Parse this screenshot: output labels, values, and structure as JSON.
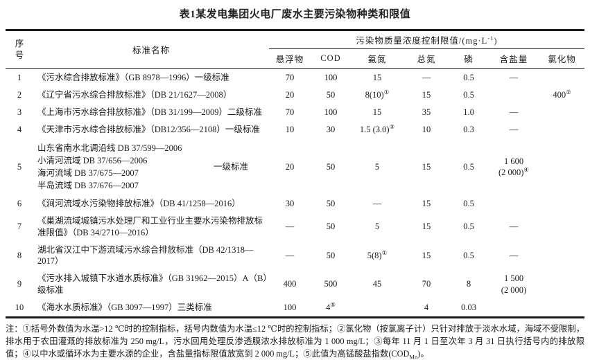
{
  "title": "表1某发电集团火电厂废水主要污染物种类和限值",
  "table": {
    "header": {
      "col_seq": "序号",
      "col_name": "标准名称",
      "span_pre": "污染物质量浓度控制限值/(mg·L",
      "span_sup": "-1",
      "span_post": ")",
      "sub_columns": [
        "悬浮物",
        "COD",
        "氨氮",
        "总氮",
        "磷",
        "含盐量",
        "氯化物"
      ]
    },
    "rows": [
      {
        "seq": "1",
        "name": "《污水综合排放标准》（GB 8978—1996）一级标准",
        "values": [
          "70",
          "100",
          "15",
          "—",
          "0.5",
          "—",
          ""
        ]
      },
      {
        "seq": "2",
        "name": "《辽宁省污水综合排放标准》（DB 21/1627—2008）",
        "values": [
          "20",
          "50",
          {
            "t": "8(10)",
            "s": "①"
          },
          "15",
          "0.5",
          "",
          {
            "t": "400",
            "s": "②"
          }
        ]
      },
      {
        "seq": "3",
        "name": "《上海市污水综合排放标准》（DB 31/199—2009）二级标准",
        "values": [
          "70",
          "100",
          "15",
          "35",
          "1.0",
          "—",
          ""
        ]
      },
      {
        "seq": "4",
        "name": "《天津市污水综合排放标准》（DB12/356—2108）一级标准",
        "values": [
          "10",
          "30",
          {
            "t": "1.5 (3.0)",
            "s": "③"
          },
          "10",
          "0.3",
          "—",
          ""
        ]
      },
      {
        "seq": "5",
        "name_lines": [
          "山东省南水北调沿线 DB 37/599—2006",
          "小清河流域 DB 37/656—2006",
          "海河流域 DB 37/675—2007",
          "半岛流域 DB 37/676—2007"
        ],
        "name_side": "一级标准",
        "values": [
          "20",
          "50",
          "5",
          "15",
          "0.5",
          {
            "t": "1 600",
            "t2": "(2 000)",
            "s2": "④"
          },
          ""
        ]
      },
      {
        "seq": "6",
        "name": "《涧河流域水污染物排放标准》（DB 41/1258—2016）",
        "values": [
          "30",
          "50",
          "—",
          "15",
          "0.5",
          "",
          ""
        ]
      },
      {
        "seq": "7",
        "name": "《巢湖流域城镇污水处理厂和工业行业主要水污染物排放标准限值》（DB 34/2710—2016）",
        "values": [
          "—",
          "50",
          "5",
          "15",
          "0.5",
          "—",
          ""
        ]
      },
      {
        "seq": "8",
        "name": "湖北省汉江中下游流域污水综合排放标准（DB 42/1318—2017）",
        "values": [
          "—",
          "50",
          {
            "t": "5(8)",
            "s": "①"
          },
          "15",
          "0.5",
          "—",
          ""
        ]
      },
      {
        "seq": "9",
        "name": "《污水排入城镇下水道水质标准》（GB 31962—2015）A（B）级标准",
        "values": [
          "400",
          "500",
          "45",
          "70",
          "8",
          {
            "t": "1 500",
            "t2": "(2 000)"
          },
          ""
        ]
      },
      {
        "seq": "10",
        "name": "《海水水质标准》（GB 3097—1997）三类标准",
        "values": [
          "100",
          {
            "t": "4",
            "s": "⑤"
          },
          "",
          "4",
          "0.03",
          "",
          ""
        ]
      }
    ]
  },
  "notes": {
    "text": "注：①括号外数值为水温>12 ℃时的控制指标，括号内数值为水温≤12 ℃时的控制指标；②氯化物（按氯离子计）只针对排放于淡水水域，海域不受限制，排水用于农田灌溉的排放标准为 250 mg/L，污水回用处理反渗透膜浓水排放标准为 1 000 mg/L；③每年 11 月 1 日至次年 3 月 31 日执行括号内的排放限值；④以中水或循环水为主要水源的企业，含盐量指标限值放宽到 2 000 mg/L；⑤此值为高锰酸盐指数(COD",
    "cod_sub": "Mn",
    "tail": ")。"
  }
}
